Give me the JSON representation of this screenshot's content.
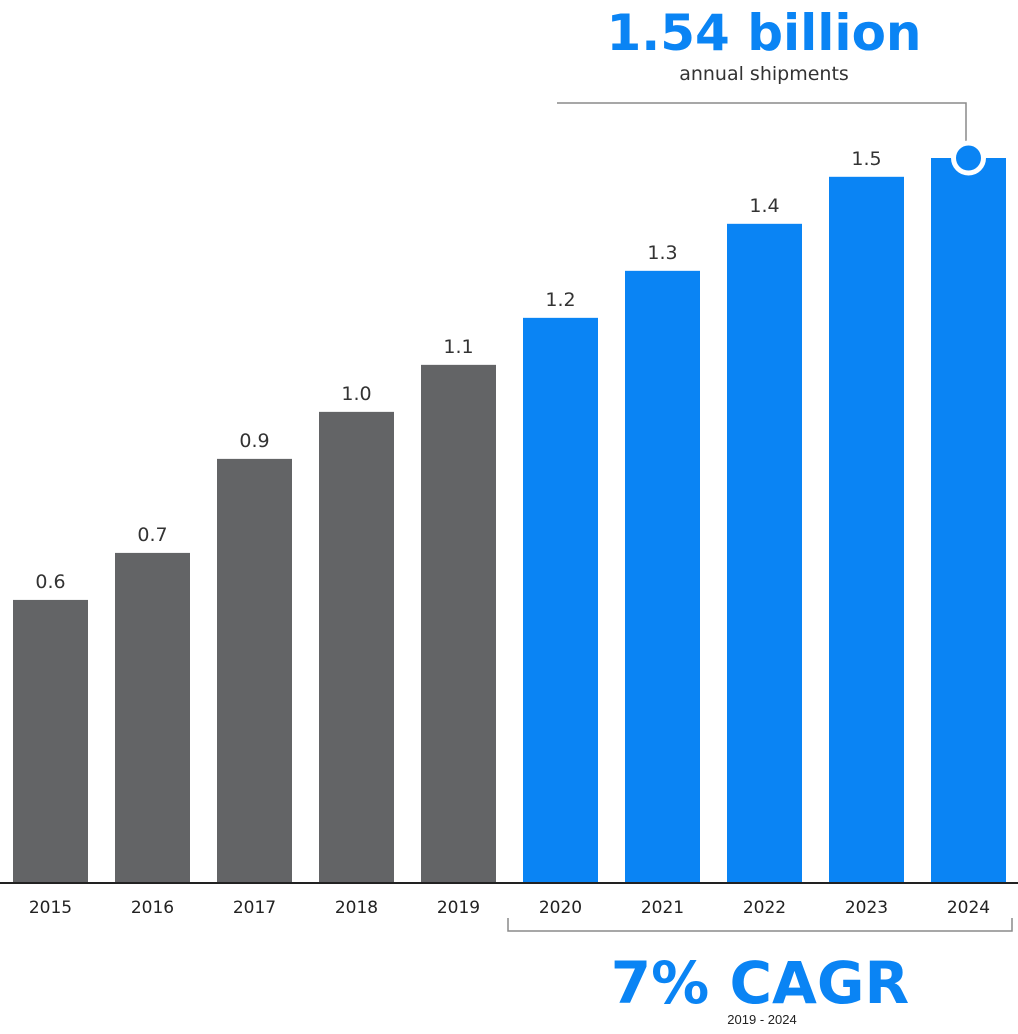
{
  "chart_data": {
    "type": "bar",
    "categories": [
      "2015",
      "2016",
      "2017",
      "2018",
      "2019",
      "2020",
      "2021",
      "2022",
      "2023",
      "2024"
    ],
    "values": [
      0.6,
      0.7,
      0.9,
      1.0,
      1.1,
      1.2,
      1.3,
      1.4,
      1.5,
      1.54
    ],
    "value_labels": [
      "0.6",
      "0.7",
      "0.9",
      "1.0",
      "1.1",
      "1.2",
      "1.3",
      "1.4",
      "1.5",
      ""
    ],
    "historical_color": "#636466",
    "forecast_color": "#0a84f4",
    "forecast_start_index": 5,
    "highlighted_index": 9,
    "ylim": [
      0,
      1.54
    ],
    "grid": false,
    "callout": {
      "value": "1.54 billion",
      "caption": "annual shipments"
    },
    "cagr": {
      "value": "7% CAGR",
      "period": "2019 - 2024",
      "from_index": 5,
      "to_index": 9
    }
  }
}
